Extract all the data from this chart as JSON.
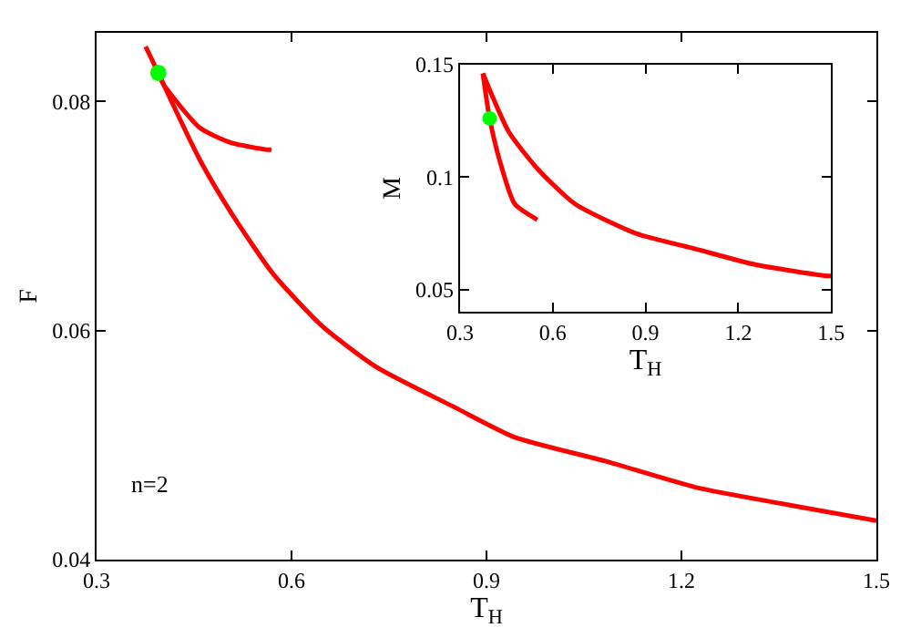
{
  "chart_data": [
    {
      "type": "line",
      "xlabel": "T$_{H}$",
      "ylabel": "F",
      "xlim": [
        0.3,
        1.5
      ],
      "ylim": [
        0.04,
        0.086
      ],
      "xticks": [
        0.3,
        0.6,
        0.9,
        1.2,
        1.5
      ],
      "yticks": [
        0.04,
        0.06,
        0.08
      ],
      "marker": "none",
      "line_style": "solid",
      "annotations": [
        "n=2"
      ],
      "series": [
        {
          "color": "#ff0000",
          "x": [
            0.3755,
            0.395,
            0.403,
            0.459,
            0.507,
            0.571,
            0.647,
            0.731,
            0.851,
            0.943,
            1.083,
            1.223,
            1.363,
            1.5
          ],
          "values": [
            0.0848,
            0.0825,
            0.0815,
            0.0749,
            0.0703,
            0.065,
            0.0604,
            0.0568,
            0.0533,
            0.0507,
            0.0486,
            0.0463,
            0.0448,
            0.0434
          ]
        },
        {
          "color": "#ff0000",
          "x": [
            0.395,
            0.403,
            0.459,
            0.507,
            0.563,
            0.569
          ],
          "values": [
            0.0825,
            0.0815,
            0.0777,
            0.0764,
            0.0758,
            0.0758
          ]
        },
        {
          "type": "scatter",
          "color": "#00ff00",
          "marker": "circle",
          "x": [
            0.395
          ],
          "values": [
            0.0825
          ]
        }
      ]
    },
    {
      "type": "line",
      "xlabel": "T$_{H}$",
      "ylabel": "M",
      "xlim": [
        0.3,
        1.5
      ],
      "ylim": [
        0.04,
        0.15
      ],
      "xticks": [
        0.3,
        0.6,
        0.9,
        1.2,
        1.5
      ],
      "yticks": [
        0.05,
        0.1,
        0.15
      ],
      "marker": "none",
      "line_style": "solid",
      "series": [
        {
          "color": "#ff0000",
          "x": [
            0.374,
            0.458,
            0.555,
            0.672,
            0.867,
            1.062,
            1.257,
            1.49,
            1.5
          ],
          "values": [
            0.146,
            0.12,
            0.103,
            0.088,
            0.075,
            0.068,
            0.061,
            0.056,
            0.056
          ]
        },
        {
          "color": "#ff0000",
          "x": [
            0.374,
            0.396,
            0.429,
            0.477,
            0.55
          ],
          "values": [
            0.146,
            0.126,
            0.107,
            0.088,
            0.081
          ]
        },
        {
          "type": "scatter",
          "color": "#00ff00",
          "marker": "circle",
          "x": [
            0.396
          ],
          "values": [
            0.126
          ]
        }
      ]
    }
  ]
}
